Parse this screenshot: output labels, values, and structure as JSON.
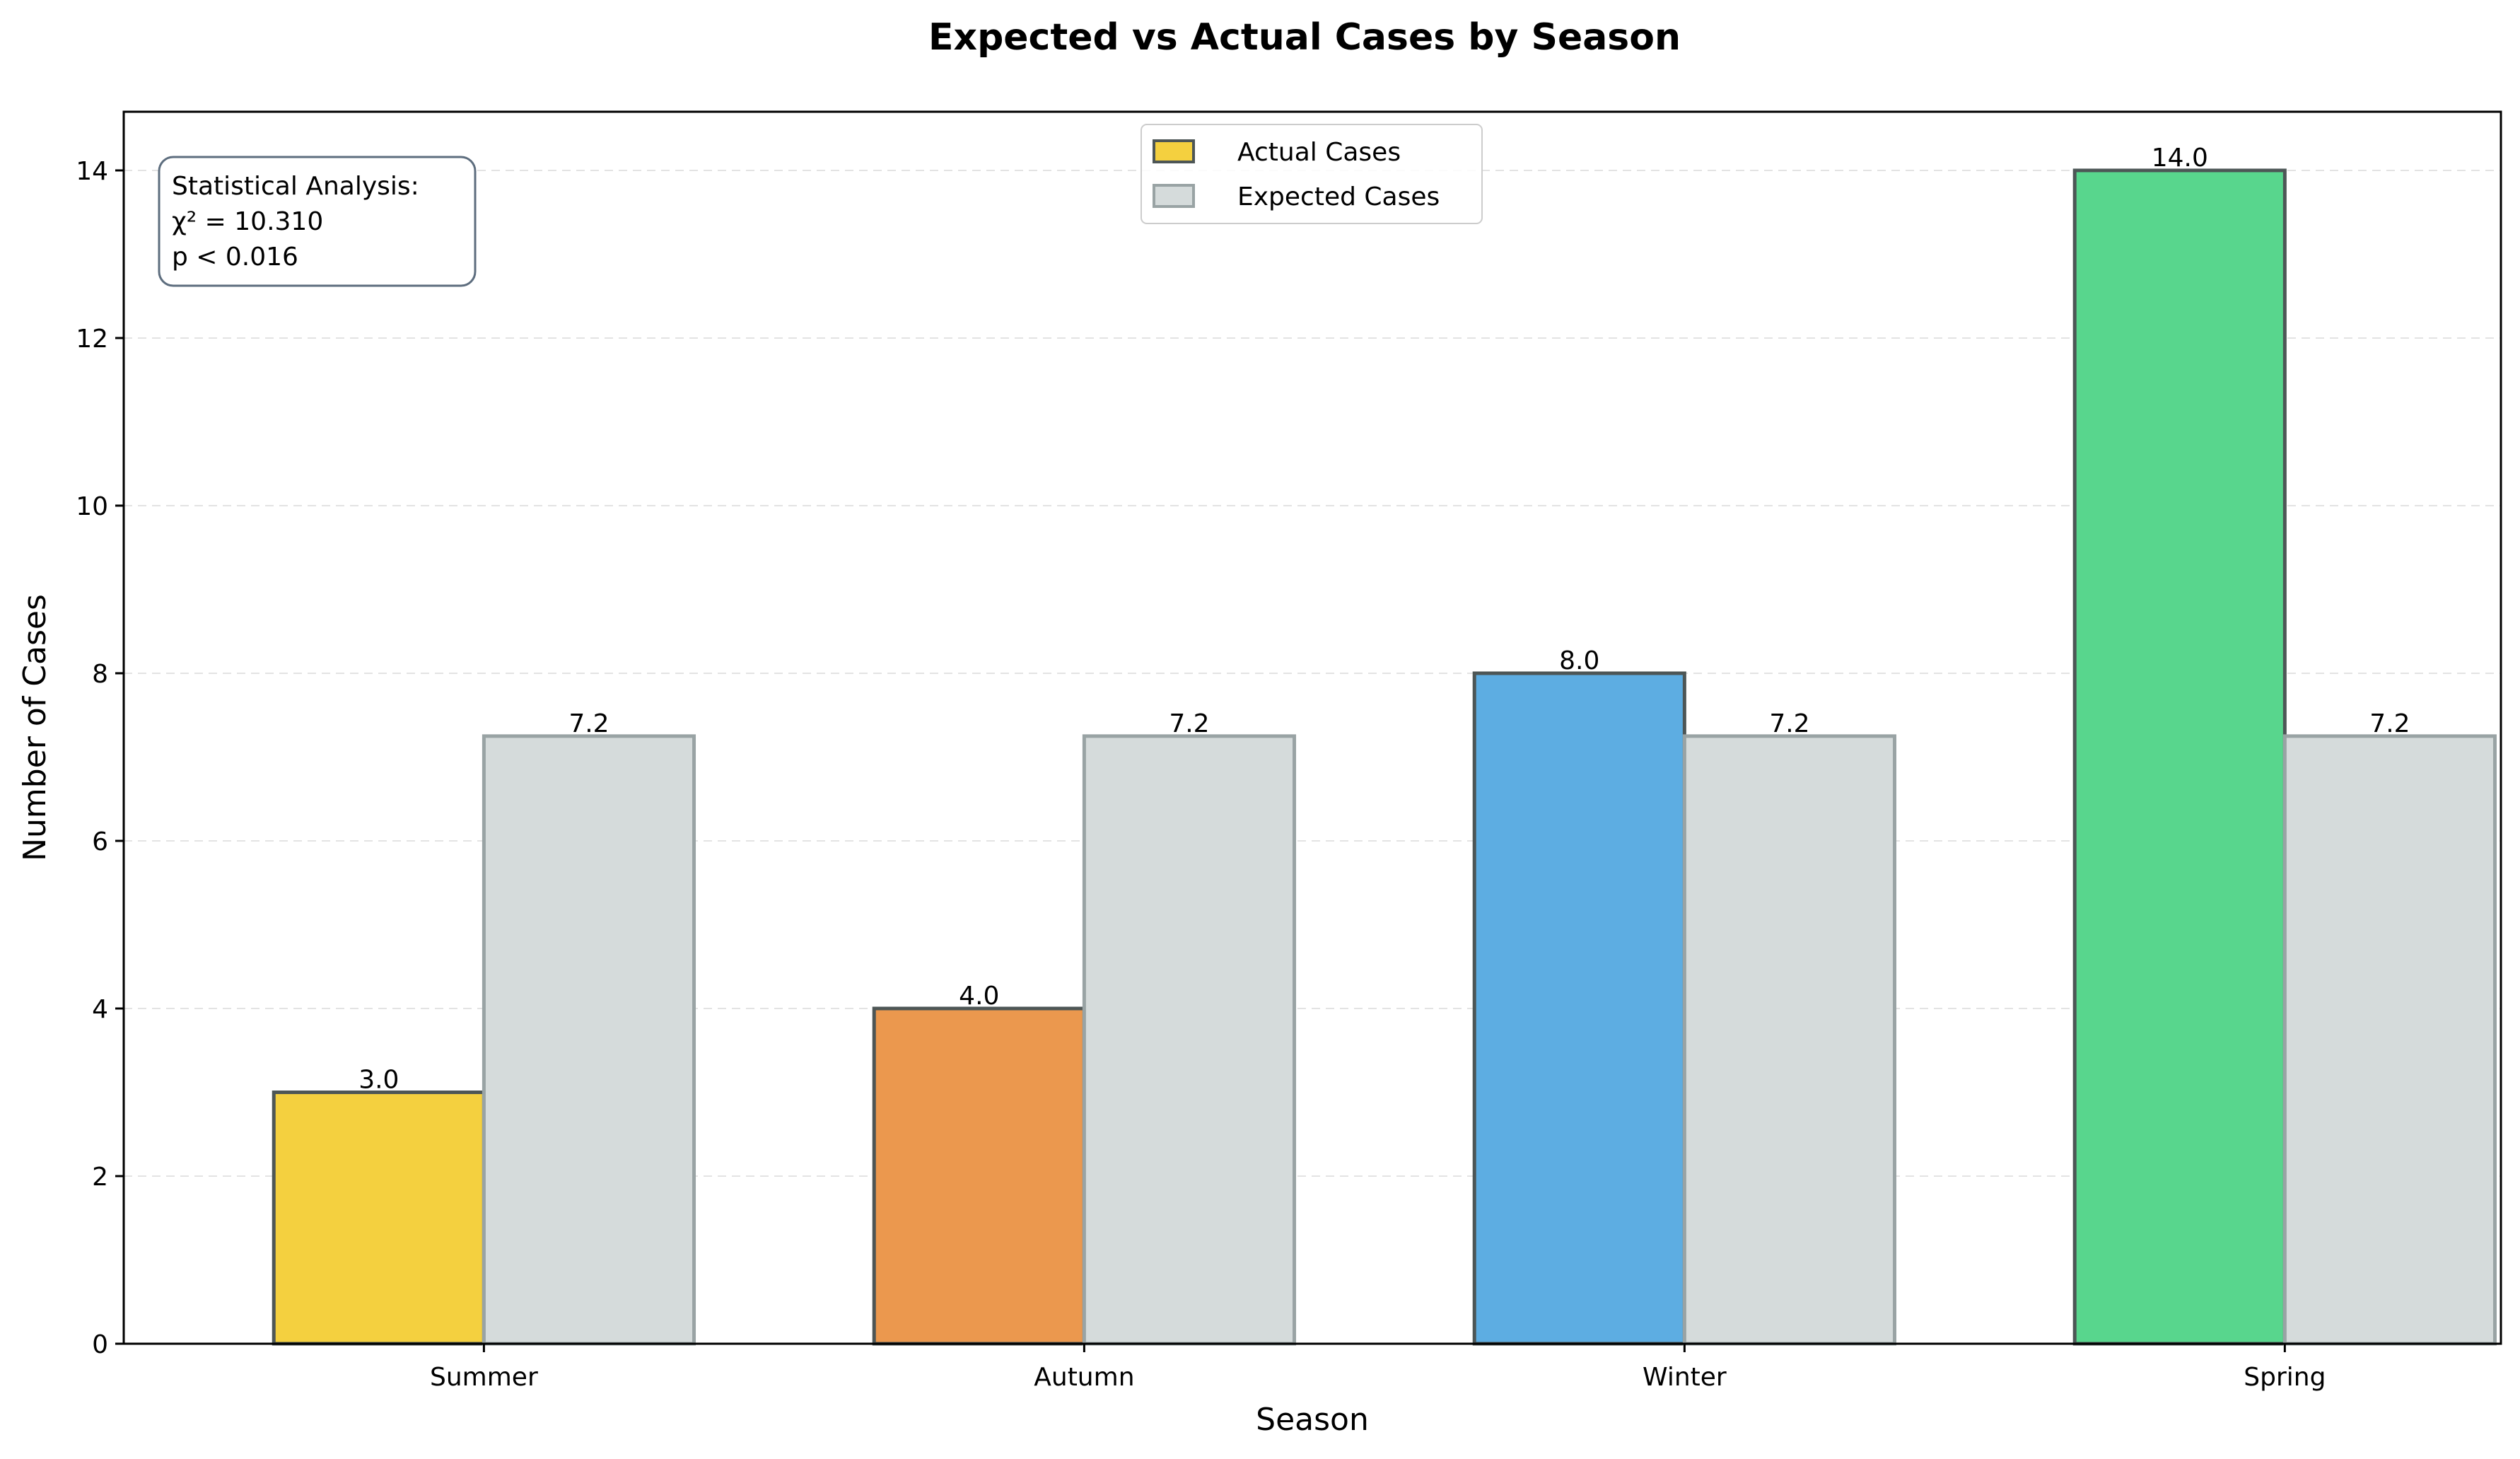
{
  "chart_data": {
    "type": "bar",
    "title": "Expected vs Actual Cases by Season",
    "xlabel": "Season",
    "ylabel": "Number of Cases",
    "categories": [
      "Summer",
      "Autumn",
      "Winter",
      "Spring"
    ],
    "ylim": [
      0,
      14.7
    ],
    "yticks": [
      0,
      2,
      4,
      6,
      8,
      10,
      12,
      14
    ],
    "grid": "y-dashed",
    "legend_position": "top-center",
    "series": [
      {
        "name": "Actual Cases",
        "values": [
          3.0,
          4.0,
          8.0,
          14.0
        ],
        "value_labels": [
          "3.0",
          "4.0",
          "8.0",
          "14.0"
        ],
        "colors": [
          "#f4d03f",
          "#eb984e",
          "#5dade2",
          "#58d68d"
        ],
        "legend_color": "#f4d03f",
        "edge_color": "#4d5656"
      },
      {
        "name": "Expected Cases",
        "values": [
          7.25,
          7.25,
          7.25,
          7.25
        ],
        "value_labels": [
          "7.2",
          "7.2",
          "7.2",
          "7.2"
        ],
        "colors": [
          "#d5dbdb",
          "#d5dbdb",
          "#d5dbdb",
          "#d5dbdb"
        ],
        "legend_color": "#d5dbdb",
        "edge_color": "#99a3a4"
      }
    ],
    "annotation": {
      "lines": [
        "Statistical Analysis:",
        "χ² = 10.310",
        "p < 0.016"
      ],
      "position": "top-left",
      "border_color": "#5d6d7e"
    }
  }
}
